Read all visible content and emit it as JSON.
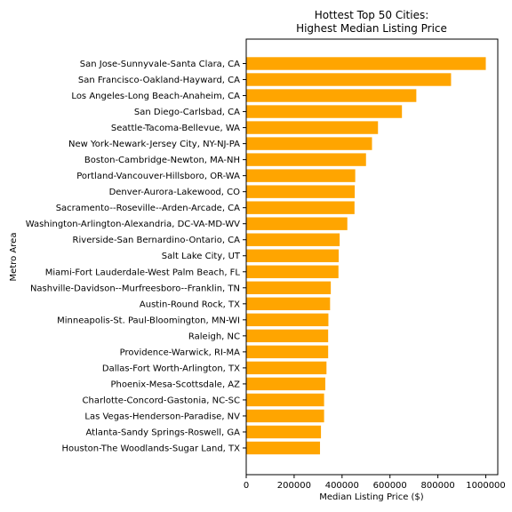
{
  "chart_data": {
    "type": "bar",
    "orientation": "horizontal",
    "title": "Hottest Top 50 Cities:\nHighest Median Listing Price",
    "xlabel": "Median Listing Price ($)",
    "ylabel": "Metro Area",
    "xlim": [
      0,
      1050000
    ],
    "xticks": [
      0,
      200000,
      400000,
      600000,
      800000,
      1000000
    ],
    "xtick_labels": [
      "0",
      "200000",
      "400000",
      "600000",
      "800000",
      "1000000"
    ],
    "bar_color": "#ffa500",
    "grid": false,
    "categories": [
      "San Jose-Sunnyvale-Santa Clara, CA",
      "San Francisco-Oakland-Hayward, CA",
      "Los Angeles-Long Beach-Anaheim, CA",
      "San Diego-Carlsbad, CA",
      "Seattle-Tacoma-Bellevue, WA",
      "New York-Newark-Jersey City, NY-NJ-PA",
      "Boston-Cambridge-Newton, MA-NH",
      "Portland-Vancouver-Hillsboro, OR-WA",
      "Denver-Aurora-Lakewood, CO",
      "Sacramento--Roseville--Arden-Arcade, CA",
      "Washington-Arlington-Alexandria, DC-VA-MD-WV",
      "Riverside-San Bernardino-Ontario, CA",
      "Salt Lake City, UT",
      "Miami-Fort Lauderdale-West Palm Beach, FL",
      "Nashville-Davidson--Murfreesboro--Franklin, TN",
      "Austin-Round Rock, TX",
      "Minneapolis-St. Paul-Bloomington, MN-WI",
      "Raleigh, NC",
      "Providence-Warwick, RI-MA",
      "Dallas-Fort Worth-Arlington, TX",
      "Phoenix-Mesa-Scottsdale, AZ",
      "Charlotte-Concord-Gastonia, NC-SC",
      "Las Vegas-Henderson-Paradise, NV",
      "Atlanta-Sandy Springs-Roswell, GA",
      "Houston-The Woodlands-Sugar Land, TX"
    ],
    "values": [
      1000000,
      855000,
      710000,
      650000,
      550000,
      525000,
      500000,
      455000,
      453000,
      452000,
      422000,
      390000,
      386000,
      385000,
      353000,
      350000,
      343000,
      342000,
      342000,
      335000,
      330000,
      325000,
      325000,
      312000,
      308000
    ]
  }
}
